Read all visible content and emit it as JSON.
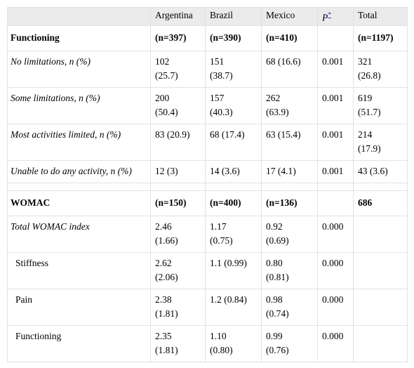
{
  "table": {
    "header": [
      null,
      "Argentina",
      "Brazil",
      "Mexico",
      "P",
      "Total"
    ],
    "header_note": "*",
    "sections": [
      {
        "cells": [
          "Functioning",
          "(n=397)",
          "(n=390)",
          "(n=410)",
          null,
          "(n=1197)"
        ],
        "rows": [
          {
            "cells": [
              "No limitations, n (%)",
              "102 (25.7)",
              "151 (38.7)",
              "68 (16.6)",
              "0.001",
              "321 (26.8)"
            ]
          },
          {
            "cells": [
              "Some limitations, n (%)",
              "200 (50.4)",
              "157 (40.3)",
              "262 (63.9)",
              "0.001",
              "619 (51.7)"
            ]
          },
          {
            "cells": [
              "Most activities limited, n (%)",
              "83 (20.9)",
              "68 (17.4)",
              "63 (15.4)",
              "0.001",
              "214 (17.9)"
            ]
          },
          {
            "cells": [
              "Unable to do any activity, n (%)",
              "12 (3)",
              "14 (3.6)",
              "17 (4.1)",
              "0.001",
              "43 (3.6)"
            ]
          }
        ]
      },
      {
        "cells": [
          "WOMAC",
          "(n=150)",
          "(n=400)",
          "(n=136)",
          null,
          "686"
        ],
        "rows": [
          {
            "cells": [
              "Total WOMAC index",
              "2.46 (1.66)",
              "1.17 (0.75)",
              "0.92 (0.69)",
              "0.000",
              null
            ],
            "components": [
              {
                "cells": [
                  "Stiffness",
                  "2.62 (2.06)",
                  "1.1 (0.99)",
                  "0.80 (0.81)",
                  "0.000",
                  null
                ]
              },
              {
                "cells": [
                  "Pain",
                  "2.38 (1.81)",
                  "1.2 (0.84)",
                  "0.98 (0.74)",
                  "0.000",
                  null
                ]
              },
              {
                "cells": [
                  "Functioning",
                  "2.35 (1.81)",
                  "1.10 (0.80)",
                  "0.99 (0.76)",
                  "0.000",
                  null
                ]
              }
            ]
          }
        ]
      }
    ]
  }
}
